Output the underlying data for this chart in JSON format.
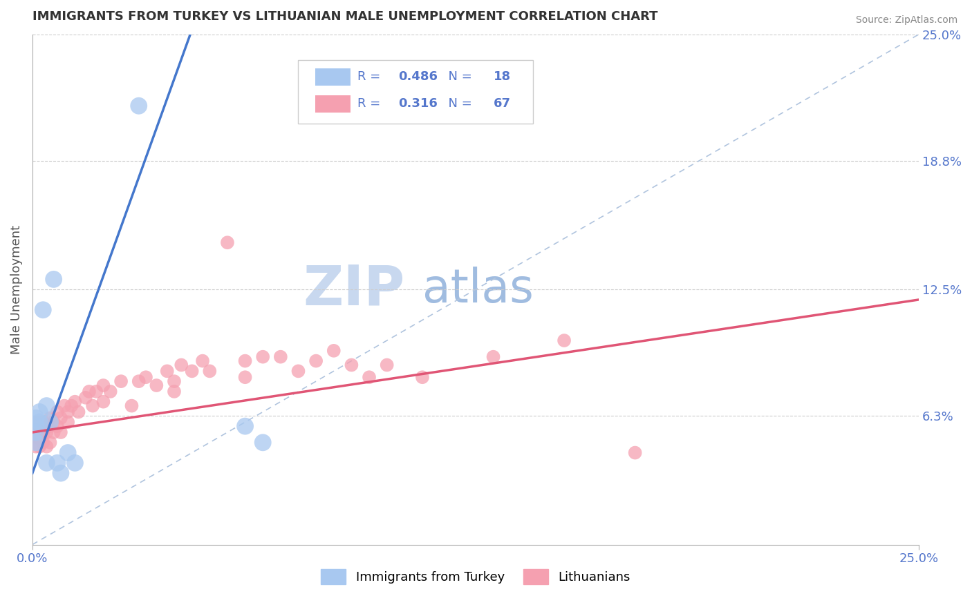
{
  "title": "IMMIGRANTS FROM TURKEY VS LITHUANIAN MALE UNEMPLOYMENT CORRELATION CHART",
  "source": "Source: ZipAtlas.com",
  "ylabel": "Male Unemployment",
  "x_tick_labels": [
    "0.0%",
    "25.0%"
  ],
  "y_tick_labels_right": [
    "6.3%",
    "12.5%",
    "18.8%",
    "25.0%"
  ],
  "y_tick_values_right": [
    0.063,
    0.125,
    0.188,
    0.25
  ],
  "legend_r_values": [
    "0.486",
    "0.316"
  ],
  "legend_n_values": [
    "18",
    "67"
  ],
  "xmin": 0.0,
  "xmax": 0.25,
  "ymin": 0.0,
  "ymax": 0.25,
  "blue_scatter_x": [
    0.001,
    0.001,
    0.001,
    0.001,
    0.002,
    0.002,
    0.003,
    0.004,
    0.004,
    0.005,
    0.006,
    0.007,
    0.008,
    0.01,
    0.012,
    0.03,
    0.06,
    0.065
  ],
  "blue_scatter_y": [
    0.058,
    0.062,
    0.055,
    0.05,
    0.065,
    0.06,
    0.115,
    0.068,
    0.04,
    0.06,
    0.13,
    0.04,
    0.035,
    0.045,
    0.04,
    0.215,
    0.058,
    0.05
  ],
  "pink_scatter_x": [
    0.001,
    0.001,
    0.001,
    0.001,
    0.001,
    0.001,
    0.002,
    0.002,
    0.002,
    0.002,
    0.002,
    0.003,
    0.003,
    0.003,
    0.003,
    0.004,
    0.004,
    0.004,
    0.005,
    0.005,
    0.005,
    0.006,
    0.006,
    0.007,
    0.007,
    0.008,
    0.008,
    0.009,
    0.01,
    0.01,
    0.011,
    0.012,
    0.013,
    0.015,
    0.016,
    0.017,
    0.018,
    0.02,
    0.02,
    0.022,
    0.025,
    0.028,
    0.03,
    0.032,
    0.035,
    0.038,
    0.04,
    0.04,
    0.042,
    0.045,
    0.048,
    0.05,
    0.055,
    0.06,
    0.06,
    0.065,
    0.07,
    0.075,
    0.08,
    0.085,
    0.09,
    0.095,
    0.1,
    0.11,
    0.13,
    0.15,
    0.17
  ],
  "pink_scatter_y": [
    0.058,
    0.06,
    0.055,
    0.05,
    0.048,
    0.053,
    0.06,
    0.058,
    0.055,
    0.052,
    0.048,
    0.058,
    0.055,
    0.06,
    0.05,
    0.058,
    0.055,
    0.048,
    0.062,
    0.058,
    0.05,
    0.06,
    0.055,
    0.065,
    0.058,
    0.062,
    0.055,
    0.068,
    0.065,
    0.06,
    0.068,
    0.07,
    0.065,
    0.072,
    0.075,
    0.068,
    0.075,
    0.078,
    0.07,
    0.075,
    0.08,
    0.068,
    0.08,
    0.082,
    0.078,
    0.085,
    0.08,
    0.075,
    0.088,
    0.085,
    0.09,
    0.085,
    0.148,
    0.082,
    0.09,
    0.092,
    0.092,
    0.085,
    0.09,
    0.095,
    0.088,
    0.082,
    0.088,
    0.082,
    0.092,
    0.1,
    0.045
  ],
  "blue_line_x": [
    0.0,
    0.088
  ],
  "blue_line_y": [
    0.035,
    0.46
  ],
  "pink_line_x": [
    0.0,
    0.25
  ],
  "pink_line_y": [
    0.055,
    0.12
  ],
  "diag_line_x": [
    0.0,
    0.25
  ],
  "diag_line_y": [
    0.0,
    0.25
  ],
  "scatter_size_blue": 320,
  "scatter_size_pink": 200,
  "blue_color": "#a8c8f0",
  "pink_color": "#f5a0b0",
  "blue_line_color": "#4477cc",
  "pink_line_color": "#e05575",
  "diag_line_color": "#b0c4de",
  "grid_color": "#cccccc",
  "title_color": "#333333",
  "axis_label_color": "#555555",
  "tick_label_color": "#5577cc",
  "source_color": "#888888",
  "watermark_zip_color": "#c8d8ef",
  "watermark_atlas_color": "#a0bce0",
  "background_color": "#ffffff"
}
